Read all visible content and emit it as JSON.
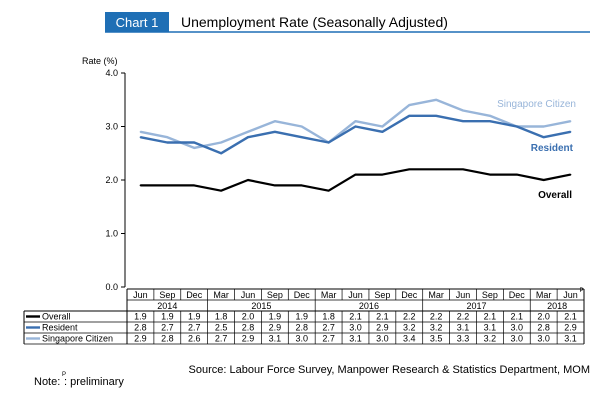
{
  "header": {
    "chart_number": "Chart 1",
    "title": "Unemployment Rate (Seasonally Adjusted)"
  },
  "colors": {
    "badge": "#1f6fb5",
    "overall": "#000000",
    "resident": "#3a6fb0",
    "singapore_citizen": "#98b5d9"
  },
  "table": {
    "row_labels": [
      "Overall",
      "Resident",
      "Singapore Citizen"
    ]
  },
  "footer": {
    "source": "Source: Labour Force Survey, Manpower Research & Statistics Department, MOM",
    "note_prefix": "Note:",
    "note_marker": "P",
    "note_text": ": preliminary"
  },
  "chart_data": {
    "type": "line",
    "ylabel": "Rate (%)",
    "ylim": [
      0.0,
      4.0
    ],
    "yticks": [
      "0.0",
      "1.0",
      "2.0",
      "3.0",
      "4.0"
    ],
    "grid": false,
    "categories": [
      "Jun",
      "Sep",
      "Dec",
      "Mar",
      "Jun",
      "Sep",
      "Dec",
      "Mar",
      "Jun",
      "Sep",
      "Dec",
      "Mar",
      "Jun",
      "Sep",
      "Dec",
      "Mar",
      "Jun"
    ],
    "last_category_superscript": "P",
    "year_groups": [
      {
        "year": "2014",
        "count": 3
      },
      {
        "year": "2015",
        "count": 4
      },
      {
        "year": "2016",
        "count": 4
      },
      {
        "year": "2017",
        "count": 4
      },
      {
        "year": "2018",
        "count": 2
      }
    ],
    "series": [
      {
        "name": "Overall",
        "values": [
          1.9,
          1.9,
          1.9,
          1.8,
          2.0,
          1.9,
          1.9,
          1.8,
          2.1,
          2.1,
          2.2,
          2.2,
          2.2,
          2.1,
          2.1,
          2.0,
          2.1
        ]
      },
      {
        "name": "Resident",
        "values": [
          2.8,
          2.7,
          2.7,
          2.5,
          2.8,
          2.9,
          2.8,
          2.7,
          3.0,
          2.9,
          3.2,
          3.2,
          3.1,
          3.1,
          3.0,
          2.8,
          2.9
        ]
      },
      {
        "name": "Singapore Citizen",
        "values": [
          2.9,
          2.8,
          2.6,
          2.7,
          2.9,
          3.1,
          3.0,
          2.7,
          3.1,
          3.0,
          3.4,
          3.5,
          3.3,
          3.2,
          3.0,
          3.0,
          3.1
        ]
      }
    ],
    "table_values": [
      [
        "1.9",
        "1.9",
        "1.9",
        "1.8",
        "2.0",
        "1.9",
        "1.9",
        "1.8",
        "2.1",
        "2.1",
        "2.2",
        "2.2",
        "2.2",
        "2.1",
        "2.1",
        "2.0",
        "2.1"
      ],
      [
        "2.8",
        "2.7",
        "2.7",
        "2.5",
        "2.8",
        "2.9",
        "2.8",
        "2.7",
        "3.0",
        "2.9",
        "3.2",
        "3.2",
        "3.1",
        "3.1",
        "3.0",
        "2.8",
        "2.9"
      ],
      [
        "2.9",
        "2.8",
        "2.6",
        "2.7",
        "2.9",
        "3.1",
        "3.0",
        "2.7",
        "3.1",
        "3.0",
        "3.4",
        "3.5",
        "3.3",
        "3.2",
        "3.0",
        "3.0",
        "3.1"
      ]
    ]
  }
}
